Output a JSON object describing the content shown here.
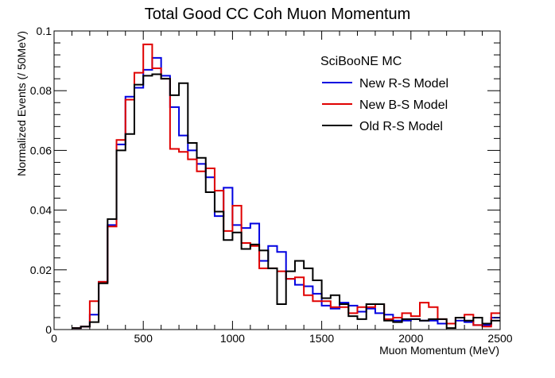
{
  "chart_data": {
    "type": "line",
    "title": "Total Good CC Coh Muon Momentum",
    "xlabel": "Muon Momentum (MeV)",
    "ylabel": "Normalized Events (/ 50MeV)",
    "xlim": [
      0,
      2500
    ],
    "ylim": [
      0,
      0.1
    ],
    "bin_width": 50,
    "x_ticks": [
      0,
      500,
      1000,
      1500,
      2000,
      2500
    ],
    "x_tick_labels": [
      "0",
      "500",
      "1000",
      "1500",
      "2000",
      "2500"
    ],
    "y_ticks": [
      0,
      0.02,
      0.04,
      0.06,
      0.08,
      0.1
    ],
    "y_tick_labels": [
      "0",
      "0.02",
      "0.04",
      "0.06",
      "0.08",
      "0.1"
    ],
    "grid": false,
    "legend_position": "top-right",
    "legend_header": "SciBooNE MC",
    "x": [
      125,
      175,
      225,
      275,
      325,
      375,
      425,
      475,
      525,
      575,
      625,
      675,
      725,
      775,
      825,
      875,
      925,
      975,
      1025,
      1075,
      1125,
      1175,
      1225,
      1275,
      1325,
      1375,
      1425,
      1475,
      1525,
      1575,
      1625,
      1675,
      1725,
      1775,
      1825,
      1875,
      1925,
      1975,
      2025,
      2075,
      2125,
      2175,
      2225,
      2275,
      2325,
      2375,
      2425,
      2475
    ],
    "series": [
      {
        "name": "New R-S Model",
        "color": "#0000e0",
        "values": [
          0.0005,
          0.001,
          0.005,
          0.016,
          0.035,
          0.062,
          0.078,
          0.081,
          0.087,
          0.091,
          0.085,
          0.0745,
          0.065,
          0.06,
          0.0555,
          0.051,
          0.038,
          0.0475,
          0.035,
          0.034,
          0.0355,
          0.023,
          0.028,
          0.026,
          0.017,
          0.015,
          0.0145,
          0.012,
          0.008,
          0.007,
          0.009,
          0.008,
          0.006,
          0.007,
          0.0055,
          0.005,
          0.003,
          0.003,
          0.0035,
          0.003,
          0.003,
          0.002,
          0.002,
          0.003,
          0.0025,
          0.0015,
          0.0015,
          0.004
        ]
      },
      {
        "name": "New B-S Model",
        "color": "#e00000",
        "values": [
          0.0005,
          0.001,
          0.0095,
          0.016,
          0.0345,
          0.0635,
          0.077,
          0.086,
          0.0955,
          0.0875,
          0.084,
          0.0605,
          0.0595,
          0.057,
          0.053,
          0.054,
          0.0465,
          0.033,
          0.0415,
          0.029,
          0.028,
          0.0205,
          0.0205,
          0.0195,
          0.017,
          0.0175,
          0.0115,
          0.0095,
          0.0095,
          0.0075,
          0.0075,
          0.0055,
          0.0075,
          0.0075,
          0.0085,
          0.0035,
          0.004,
          0.0055,
          0.0045,
          0.009,
          0.0075,
          0.0035,
          0.002,
          0.004,
          0.005,
          0.0015,
          0.001,
          0.0055
        ]
      },
      {
        "name": "Old R-S Model",
        "color": "#000000",
        "values": [
          0.0005,
          0.001,
          0.0025,
          0.0155,
          0.037,
          0.06,
          0.0655,
          0.082,
          0.085,
          0.0855,
          0.084,
          0.0785,
          0.0825,
          0.0625,
          0.0575,
          0.046,
          0.0395,
          0.03,
          0.0325,
          0.027,
          0.0285,
          0.0265,
          0.0205,
          0.0085,
          0.0195,
          0.023,
          0.0205,
          0.0165,
          0.0105,
          0.0115,
          0.0085,
          0.0045,
          0.0035,
          0.0085,
          0.0085,
          0.003,
          0.0025,
          0.0035,
          0.0035,
          0.003,
          0.0035,
          0.0035,
          0.0005,
          0.004,
          0.003,
          0.004,
          0.002,
          0.003
        ]
      }
    ]
  }
}
